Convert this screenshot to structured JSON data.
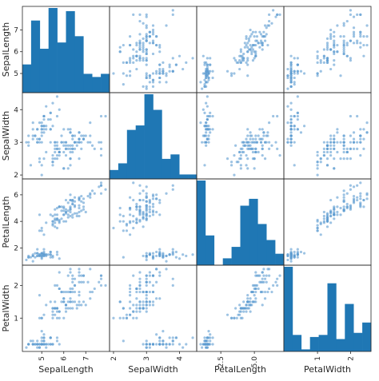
{
  "chart_data": {
    "type": "scatter_matrix",
    "variables": [
      "SepalLength",
      "SepalWidth",
      "PetalLength",
      "PetalWidth"
    ],
    "ranges": {
      "SepalLength": [
        4.3,
        7.9
      ],
      "SepalWidth": [
        2.0,
        4.4
      ],
      "PetalLength": [
        1.0,
        6.9
      ],
      "PetalWidth": [
        0.1,
        2.5
      ]
    },
    "tick_labels": {
      "SepalLength": {
        "values": [
          5,
          6,
          7
        ],
        "labels": [
          "5",
          "6",
          "7"
        ]
      },
      "SepalWidth": {
        "values": [
          2,
          3,
          4
        ],
        "labels": [
          "2",
          "3",
          "4"
        ]
      },
      "PetalLength": {
        "values": [
          2,
          4,
          6
        ],
        "labels": [
          "2",
          "4",
          "6"
        ],
        "x_values": [
          2.5,
          5.0
        ],
        "x_labels": [
          "2.5",
          "5.0"
        ]
      },
      "PetalWidth": {
        "values": [
          1,
          2
        ],
        "labels": [
          "1",
          "2"
        ]
      }
    },
    "histograms": {
      "SepalLength": [
        9,
        23,
        14,
        27,
        16,
        26,
        18,
        6,
        5,
        6
      ],
      "SepalWidth": [
        4,
        7,
        22,
        24,
        38,
        31,
        9,
        11,
        2,
        2
      ],
      "PetalLength": [
        37,
        13,
        0,
        3,
        8,
        26,
        29,
        18,
        11,
        5
      ],
      "PetalWidth": [
        41,
        8,
        1,
        7,
        8,
        33,
        6,
        23,
        9,
        14
      ]
    },
    "observations": {
      "SepalLength": [
        5.1,
        4.9,
        4.7,
        4.6,
        5.0,
        5.4,
        4.6,
        5.0,
        4.4,
        4.9,
        5.4,
        4.8,
        4.8,
        4.3,
        5.8,
        5.7,
        5.4,
        5.1,
        5.7,
        5.1,
        5.4,
        5.1,
        4.6,
        5.1,
        4.8,
        5.0,
        5.0,
        5.2,
        5.2,
        4.7,
        4.8,
        5.4,
        5.2,
        5.5,
        4.9,
        5.0,
        5.5,
        4.9,
        4.4,
        5.1,
        5.0,
        4.5,
        4.4,
        5.0,
        5.1,
        4.8,
        5.1,
        4.6,
        5.3,
        5.0,
        7.0,
        6.4,
        6.9,
        5.5,
        6.5,
        5.7,
        6.3,
        4.9,
        6.6,
        5.2,
        5.0,
        5.9,
        6.0,
        6.1,
        5.6,
        6.7,
        5.6,
        5.8,
        6.2,
        5.6,
        5.9,
        6.1,
        6.3,
        6.1,
        6.4,
        6.6,
        6.8,
        6.7,
        6.0,
        5.7,
        5.5,
        5.5,
        5.8,
        6.0,
        5.4,
        6.0,
        6.7,
        6.3,
        5.6,
        5.5,
        5.5,
        6.1,
        5.8,
        5.0,
        5.6,
        5.7,
        5.7,
        6.2,
        5.1,
        5.7,
        6.3,
        5.8,
        7.1,
        6.3,
        6.5,
        7.6,
        4.9,
        7.3,
        6.7,
        7.2,
        6.5,
        6.4,
        6.8,
        5.7,
        5.8,
        6.4,
        6.5,
        7.7,
        7.7,
        6.0,
        6.9,
        5.6,
        7.7,
        6.3,
        6.7,
        7.2,
        6.2,
        6.1,
        6.4,
        7.2,
        7.4,
        7.9,
        6.4,
        6.3,
        6.1,
        7.7,
        6.3,
        6.4,
        6.0,
        6.9,
        6.7,
        6.9,
        5.8,
        6.8,
        6.7,
        6.7,
        6.3,
        6.5,
        6.2,
        5.9
      ],
      "SepalWidth": [
        3.5,
        3.0,
        3.2,
        3.1,
        3.6,
        3.9,
        3.4,
        3.4,
        2.9,
        3.1,
        3.7,
        3.4,
        3.0,
        3.0,
        4.0,
        4.4,
        3.9,
        3.5,
        3.8,
        3.8,
        3.4,
        3.7,
        3.6,
        3.3,
        3.4,
        3.0,
        3.4,
        3.5,
        3.4,
        3.2,
        3.1,
        3.4,
        4.1,
        4.2,
        3.1,
        3.2,
        3.5,
        3.6,
        3.0,
        3.4,
        3.5,
        2.3,
        3.2,
        3.5,
        3.8,
        3.0,
        3.8,
        3.2,
        3.7,
        3.3,
        3.2,
        3.2,
        3.1,
        2.3,
        2.8,
        2.8,
        3.3,
        2.4,
        2.9,
        2.7,
        2.0,
        3.0,
        2.2,
        2.9,
        2.9,
        3.1,
        3.0,
        2.7,
        2.2,
        2.5,
        3.2,
        2.8,
        2.5,
        2.8,
        2.9,
        3.0,
        2.8,
        3.0,
        2.9,
        2.6,
        2.4,
        2.4,
        2.7,
        2.7,
        3.0,
        3.4,
        3.1,
        2.3,
        3.0,
        2.5,
        2.6,
        3.0,
        2.6,
        2.3,
        2.7,
        3.0,
        2.9,
        2.9,
        2.5,
        2.8,
        3.3,
        2.7,
        3.0,
        2.9,
        3.0,
        3.0,
        2.5,
        2.9,
        2.5,
        3.6,
        3.2,
        2.7,
        3.0,
        2.5,
        2.8,
        3.2,
        3.0,
        3.8,
        2.6,
        2.2,
        3.2,
        2.8,
        2.8,
        2.7,
        3.3,
        3.2,
        2.8,
        3.0,
        2.8,
        3.0,
        2.8,
        3.8,
        2.8,
        2.8,
        2.6,
        3.0,
        3.4,
        3.1,
        3.0,
        3.1,
        3.1,
        3.1,
        2.7,
        3.2,
        3.3,
        3.0,
        2.5,
        3.0,
        3.4,
        3.0
      ],
      "PetalLength": [
        1.4,
        1.4,
        1.3,
        1.5,
        1.4,
        1.7,
        1.4,
        1.5,
        1.4,
        1.5,
        1.5,
        1.6,
        1.4,
        1.1,
        1.2,
        1.5,
        1.3,
        1.4,
        1.7,
        1.5,
        1.7,
        1.5,
        1.0,
        1.7,
        1.9,
        1.6,
        1.6,
        1.5,
        1.4,
        1.6,
        1.6,
        1.5,
        1.5,
        1.4,
        1.5,
        1.2,
        1.3,
        1.4,
        1.3,
        1.5,
        1.3,
        1.3,
        1.3,
        1.6,
        1.9,
        1.4,
        1.6,
        1.4,
        1.5,
        1.4,
        4.7,
        4.5,
        4.9,
        4.0,
        4.6,
        4.5,
        4.7,
        3.3,
        4.6,
        3.9,
        3.5,
        4.2,
        4.0,
        4.7,
        3.6,
        4.4,
        4.5,
        4.1,
        4.5,
        3.9,
        4.8,
        4.0,
        4.9,
        4.7,
        4.3,
        4.4,
        4.8,
        5.0,
        4.5,
        3.5,
        3.8,
        3.7,
        3.9,
        5.1,
        4.5,
        4.5,
        4.7,
        4.4,
        4.1,
        4.0,
        4.4,
        4.6,
        4.0,
        3.3,
        4.2,
        4.2,
        4.2,
        4.3,
        3.0,
        4.1,
        6.0,
        5.1,
        5.9,
        5.6,
        5.8,
        6.6,
        4.5,
        6.3,
        5.8,
        6.1,
        5.1,
        5.3,
        5.5,
        5.0,
        5.1,
        5.3,
        5.5,
        6.7,
        6.9,
        5.0,
        5.7,
        4.9,
        6.7,
        4.9,
        5.7,
        6.0,
        4.8,
        4.9,
        5.6,
        5.8,
        6.1,
        6.4,
        5.6,
        5.1,
        5.6,
        6.1,
        5.6,
        5.5,
        4.8,
        5.4,
        5.6,
        5.1,
        5.1,
        5.9,
        5.7,
        5.2,
        5.0,
        5.2,
        5.4,
        5.1
      ],
      "PetalWidth": [
        0.2,
        0.2,
        0.2,
        0.2,
        0.2,
        0.4,
        0.3,
        0.2,
        0.2,
        0.1,
        0.2,
        0.2,
        0.1,
        0.1,
        0.2,
        0.4,
        0.4,
        0.3,
        0.3,
        0.3,
        0.2,
        0.4,
        0.2,
        0.5,
        0.2,
        0.2,
        0.4,
        0.2,
        0.2,
        0.2,
        0.2,
        0.4,
        0.1,
        0.2,
        0.2,
        0.2,
        0.2,
        0.1,
        0.2,
        0.2,
        0.3,
        0.3,
        0.2,
        0.6,
        0.4,
        0.3,
        0.2,
        0.2,
        0.2,
        0.2,
        1.4,
        1.5,
        1.5,
        1.3,
        1.5,
        1.3,
        1.6,
        1.0,
        1.3,
        1.4,
        1.0,
        1.5,
        1.0,
        1.4,
        1.3,
        1.4,
        1.5,
        1.0,
        1.5,
        1.1,
        1.8,
        1.3,
        1.5,
        1.2,
        1.3,
        1.4,
        1.4,
        1.7,
        1.5,
        1.0,
        1.1,
        1.0,
        1.2,
        1.6,
        1.5,
        1.6,
        1.5,
        1.3,
        1.3,
        1.3,
        1.2,
        1.4,
        1.2,
        1.0,
        1.3,
        1.2,
        1.3,
        1.3,
        1.1,
        1.3,
        2.5,
        1.9,
        2.1,
        1.8,
        2.2,
        2.1,
        1.7,
        1.8,
        1.8,
        2.5,
        2.0,
        1.9,
        2.1,
        2.0,
        2.4,
        2.3,
        1.8,
        2.2,
        2.3,
        1.5,
        2.3,
        2.0,
        2.0,
        1.8,
        2.1,
        1.8,
        1.8,
        1.8,
        2.1,
        1.6,
        1.9,
        2.0,
        2.2,
        1.5,
        1.4,
        2.3,
        2.4,
        1.8,
        1.8,
        2.1,
        2.4,
        2.3,
        1.9,
        2.3,
        2.5,
        2.3,
        1.9,
        2.0,
        2.3,
        1.8
      ]
    }
  }
}
